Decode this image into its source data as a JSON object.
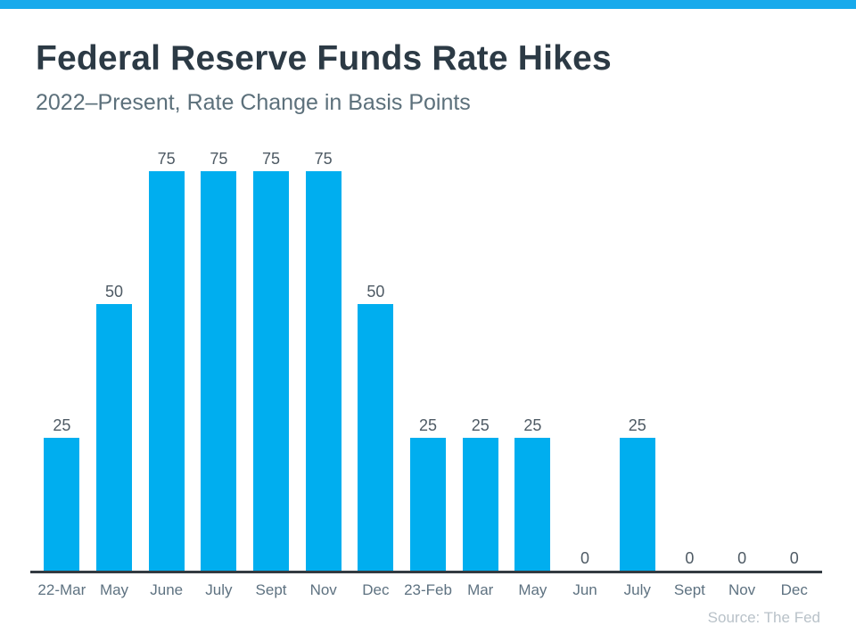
{
  "page": {
    "background": "#ffffff",
    "banner_color": "#18aaec"
  },
  "header": {
    "title": "Federal Reserve Funds Rate Hikes",
    "subtitle": "2022–Present, Rate Change in Basis Points"
  },
  "footer": {
    "source": "Source: The Fed"
  },
  "chart_data": {
    "type": "bar",
    "title": "Federal Reserve Funds Rate Hikes",
    "subtitle": "2022–Present, Rate Change in Basis Points",
    "categories": [
      "22-Mar",
      "May",
      "June",
      "July",
      "Sept",
      "Nov",
      "Dec",
      "23-Feb",
      "Mar",
      "May",
      "Jun",
      "July",
      "Sept",
      "Nov",
      "Dec"
    ],
    "values": [
      25,
      50,
      75,
      75,
      75,
      75,
      50,
      25,
      25,
      25,
      0,
      25,
      0,
      0,
      0
    ],
    "unit": "basis points",
    "xlabel": "",
    "ylabel": "",
    "ylim": [
      0,
      75
    ],
    "bar_color": "#00aeef",
    "value_label_color": "#4e5a64",
    "tick_label_color": "#5e7281",
    "axis_color": "#333b41",
    "data_labels_shown": true,
    "grid": false,
    "legend": false,
    "source": "Source: The Fed"
  }
}
